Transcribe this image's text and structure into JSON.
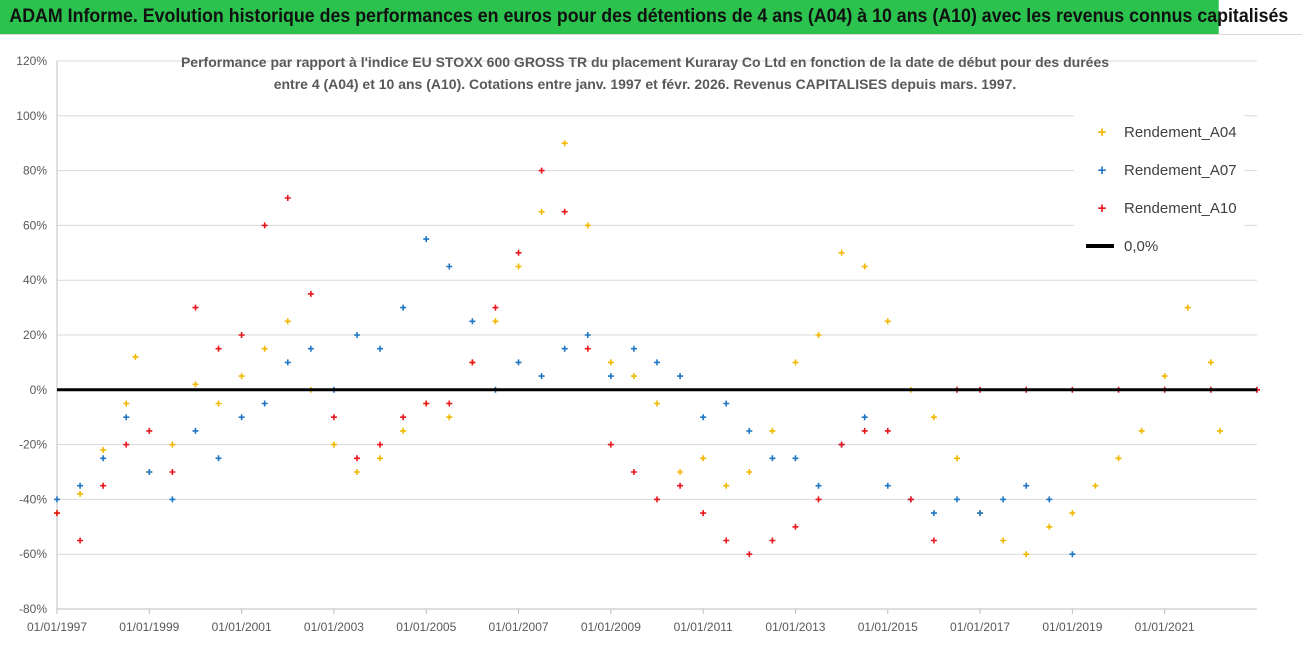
{
  "banner": {
    "title": "ADAM Informe. Evolution historique des performances en euros pour des détentions de 4 ans (A04) à 10 ans (A10) avec les revenus connus capitalisés"
  },
  "chart": {
    "subtitle_line1": "Performance par rapport à l'indice EU STOXX 600 GROSS TR  du placement Kuraray Co Ltd en fonction de la date de début pour des durées",
    "subtitle_line2": "entre 4 (A04) et 10 ans (A10). Cotations entre janv. 1997 et févr. 2026. Revenus CAPITALISES depuis mars. 1997.",
    "legend": {
      "a04": "Rendement_A04",
      "a07": "Rendement_A07",
      "a10": "Rendement_A10",
      "zero": "0,0%"
    }
  },
  "chart_data": {
    "type": "scatter",
    "title": "Performance par rapport à l'indice EU STOXX 600 GROSS TR du placement Kuraray Co Ltd en fonction de la date de début pour des durées entre 4 (A04) et 10 ans (A10). Cotations entre janv. 1997 et févr. 2026. Revenus CAPITALISES depuis mars. 1997.",
    "xlabel": "",
    "ylabel": "",
    "x_range": [
      1997.0,
      2023.0
    ],
    "ylim": [
      -80,
      120
    ],
    "y_ticks": [
      120,
      100,
      80,
      60,
      40,
      20,
      0,
      -20,
      -40,
      -60,
      -80
    ],
    "y_tick_labels": [
      "120%",
      "100%",
      "80%",
      "60%",
      "40%",
      "20%",
      "0%",
      "-20%",
      "-40%",
      "-60%",
      "-80%"
    ],
    "x_tick_values": [
      1997,
      1999,
      2001,
      2003,
      2005,
      2007,
      2009,
      2011,
      2013,
      2015,
      2017,
      2019,
      2021
    ],
    "x_tick_labels": [
      "01/01/1997",
      "01/01/1999",
      "01/01/2001",
      "01/01/2003",
      "01/01/2005",
      "01/01/2007",
      "01/01/2009",
      "01/01/2011",
      "01/01/2013",
      "01/01/2015",
      "01/01/2017",
      "01/01/2019",
      "01/01/2021"
    ],
    "grid": true,
    "legend_position": "right",
    "reference_line": {
      "name": "0,0%",
      "y": 0,
      "color": "#000000"
    },
    "series": [
      {
        "name": "Rendement_A04",
        "color": "#f2b800",
        "x": [
          1997.0,
          1997.5,
          1998.0,
          1998.5,
          1998.7,
          1999.0,
          1999.5,
          2000.0,
          2000.5,
          2001.0,
          2001.5,
          2002.0,
          2002.5,
          2003.0,
          2003.5,
          2004.0,
          2004.5,
          2005.0,
          2005.5,
          2006.0,
          2006.5,
          2007.0,
          2007.5,
          2008.0,
          2008.5,
          2009.0,
          2009.5,
          2010.0,
          2010.5,
          2011.0,
          2011.5,
          2012.0,
          2012.5,
          2013.0,
          2013.5,
          2014.0,
          2014.5,
          2015.0,
          2015.5,
          2016.0,
          2016.5,
          2017.0,
          2017.5,
          2018.0,
          2018.5,
          2019.0,
          2019.5,
          2020.0,
          2020.5,
          2021.0,
          2021.5,
          2022.0,
          2022.2
        ],
        "y": [
          -45,
          -38,
          -22,
          -5,
          12,
          -30,
          -20,
          2,
          -5,
          5,
          15,
          25,
          0,
          -20,
          -30,
          -25,
          -15,
          -5,
          -10,
          10,
          25,
          45,
          65,
          90,
          60,
          10,
          5,
          -5,
          -30,
          -25,
          -35,
          -30,
          -15,
          10,
          20,
          50,
          45,
          25,
          0,
          -10,
          -25,
          -45,
          -55,
          -60,
          -50,
          -45,
          -35,
          -25,
          -15,
          5,
          30,
          10,
          -15
        ]
      },
      {
        "name": "Rendement_A07",
        "color": "#1f77c4",
        "x": [
          1997.0,
          1997.5,
          1998.0,
          1998.5,
          1999.0,
          1999.5,
          2000.0,
          2000.5,
          2001.0,
          2001.5,
          2002.0,
          2002.5,
          2003.0,
          2003.5,
          2004.0,
          2004.5,
          2005.0,
          2005.5,
          2006.0,
          2006.5,
          2007.0,
          2007.5,
          2008.0,
          2008.5,
          2009.0,
          2009.5,
          2010.0,
          2010.5,
          2011.0,
          2011.5,
          2012.0,
          2012.5,
          2013.0,
          2013.5,
          2014.0,
          2014.5,
          2015.0,
          2015.5,
          2016.0,
          2016.5,
          2017.0,
          2017.5,
          2018.0,
          2018.5,
          2019.0
        ],
        "y": [
          -40,
          -35,
          -25,
          -10,
          -30,
          -40,
          -15,
          -25,
          -10,
          -5,
          10,
          15,
          0,
          20,
          15,
          30,
          55,
          45,
          25,
          0,
          10,
          5,
          15,
          20,
          5,
          15,
          10,
          5,
          -10,
          -5,
          -15,
          -25,
          -25,
          -35,
          -20,
          -10,
          -35,
          -40,
          -45,
          -40,
          -45,
          -40,
          -35,
          -40,
          -60
        ]
      },
      {
        "name": "Rendement_A10",
        "color": "#e8161c",
        "x": [
          1997.0,
          1997.5,
          1998.0,
          1998.5,
          1999.0,
          1999.5,
          2000.0,
          2000.5,
          2001.0,
          2001.5,
          2002.0,
          2002.5,
          2003.0,
          2003.5,
          2004.0,
          2004.5,
          2005.0,
          2005.5,
          2006.0,
          2006.5,
          2007.0,
          2007.5,
          2008.0,
          2008.5,
          2009.0,
          2009.5,
          2010.0,
          2010.5,
          2011.0,
          2011.5,
          2012.0,
          2012.5,
          2013.0,
          2013.5,
          2014.0,
          2014.5,
          2015.0,
          2015.5,
          2016.0,
          2016.5,
          2017.0,
          2018.0,
          2019.0,
          2020.0,
          2021.0,
          2022.0,
          2023.0
        ],
        "y": [
          -45,
          -55,
          -35,
          -20,
          -15,
          -30,
          30,
          15,
          20,
          60,
          70,
          35,
          -10,
          -25,
          -20,
          -10,
          -5,
          -5,
          10,
          30,
          50,
          80,
          65,
          15,
          -20,
          -30,
          -40,
          -35,
          -45,
          -55,
          -60,
          -55,
          -50,
          -40,
          -20,
          -15,
          -15,
          -40,
          -55,
          0,
          0,
          0,
          0,
          0,
          0,
          0,
          0
        ]
      }
    ]
  }
}
